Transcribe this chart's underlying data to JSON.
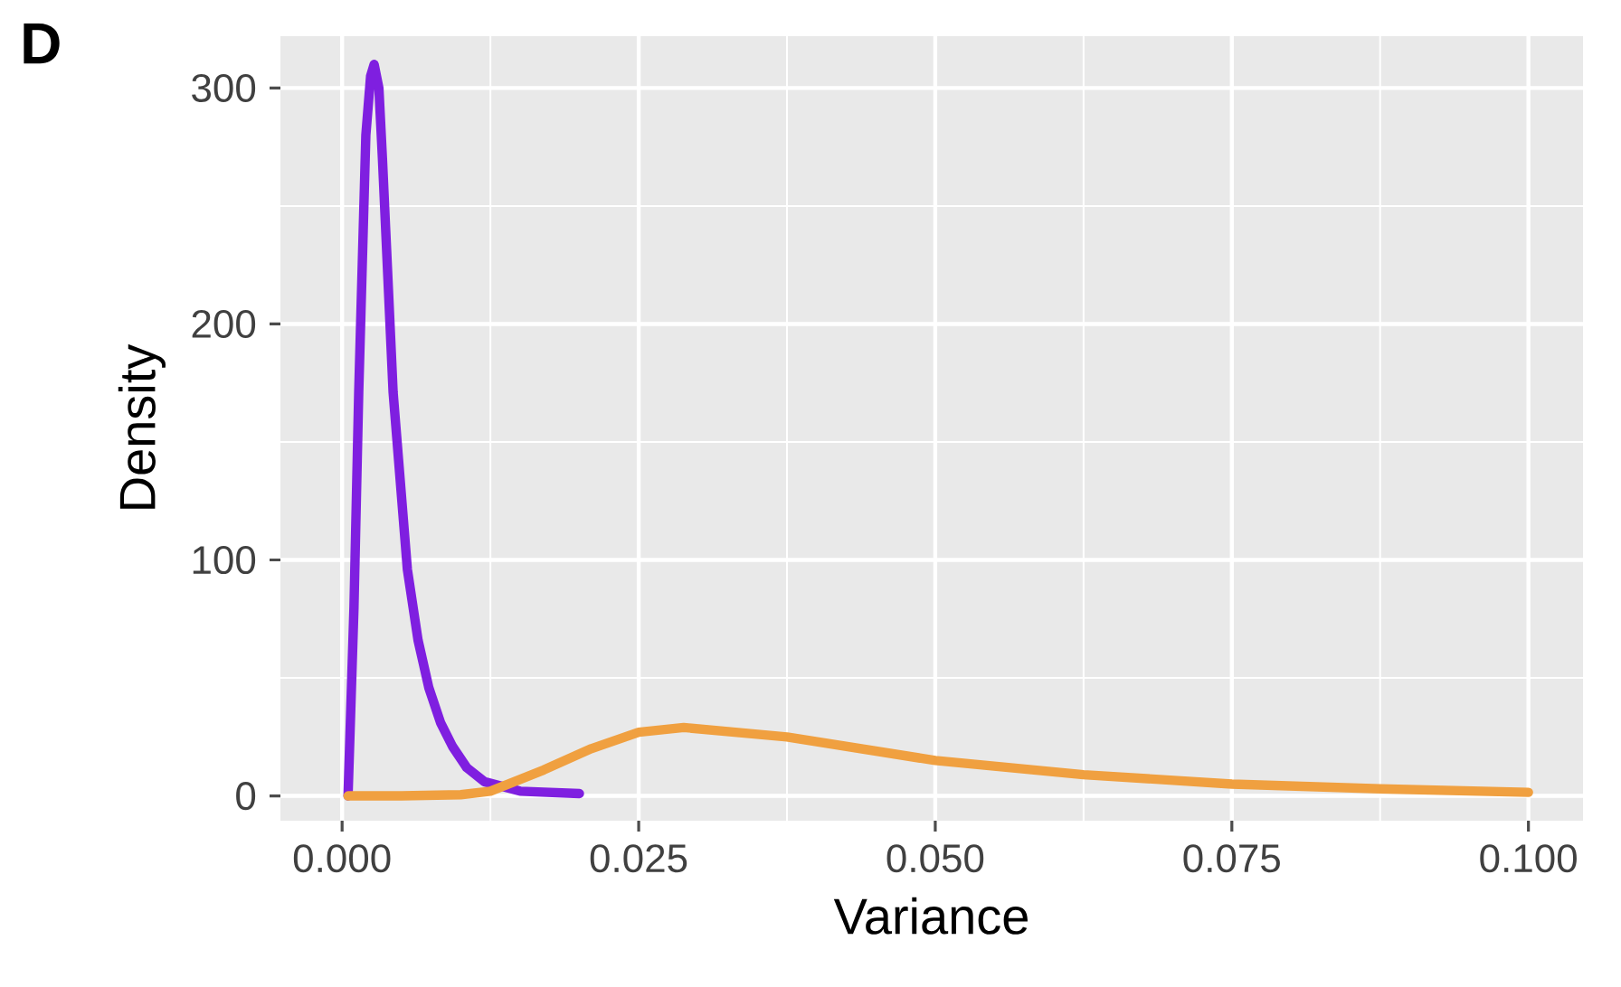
{
  "chart_data": {
    "type": "line",
    "title": "D",
    "xlabel": "Variance",
    "ylabel": "Density",
    "xlim": [
      -0.0052,
      0.1046
    ],
    "ylim": [
      -10.5,
      322
    ],
    "xticks": [
      {
        "value": 0,
        "label": "0.000"
      },
      {
        "value": 0.025,
        "label": "0.025"
      },
      {
        "value": 0.05,
        "label": "0.050"
      },
      {
        "value": 0.075,
        "label": "0.075"
      },
      {
        "value": 0.1,
        "label": "0.100"
      }
    ],
    "yticks": [
      0,
      100,
      200,
      300
    ],
    "grid": true,
    "marker": "none",
    "line_style": "solid",
    "series": [
      {
        "color": "#7f1fe0",
        "x": [
          0.0005,
          0.001,
          0.0014,
          0.002,
          0.0024,
          0.0027,
          0.0031,
          0.0034,
          0.0043,
          0.0055,
          0.0064,
          0.0073,
          0.0083,
          0.0093,
          0.0105,
          0.012,
          0.015,
          0.02
        ],
        "values": [
          0,
          80,
          171,
          280,
          305,
          310,
          300,
          270,
          171,
          96,
          66,
          46,
          31,
          21,
          12,
          6,
          2,
          1
        ]
      },
      {
        "color": "#f0a040",
        "x": [
          0.0005,
          0.005,
          0.01,
          0.0125,
          0.017,
          0.021,
          0.025,
          0.0288,
          0.0375,
          0.05,
          0.0625,
          0.075,
          0.0875,
          0.1
        ],
        "values": [
          0,
          0,
          0.5,
          2,
          11,
          20,
          27,
          29,
          25,
          15,
          9,
          5,
          3,
          1.5
        ]
      }
    ]
  }
}
